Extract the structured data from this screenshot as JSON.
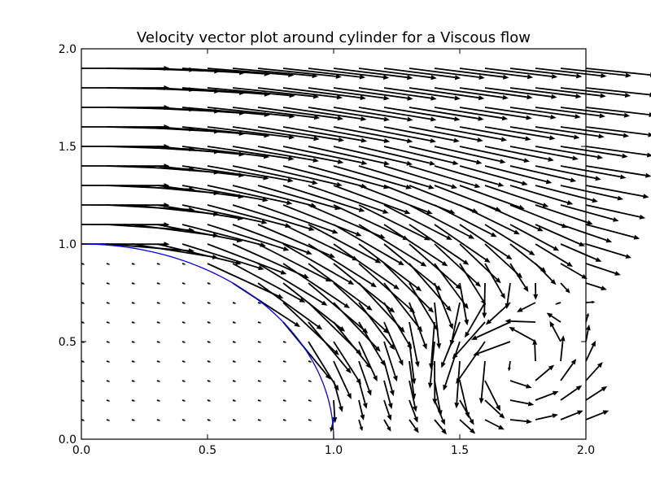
{
  "chart_data": {
    "type": "quiver",
    "title": "Velocity vector plot around cylinder for a Viscous flow",
    "xlabel": "",
    "ylabel": "",
    "xlim": [
      0.0,
      2.0
    ],
    "ylim": [
      0.0,
      2.0
    ],
    "x_ticks": [
      0.0,
      0.5,
      1.0,
      1.5,
      2.0
    ],
    "x_tick_labels": [
      "0.0",
      "0.5",
      "1.0",
      "1.5",
      "2.0"
    ],
    "y_ticks": [
      0.0,
      0.5,
      1.0,
      1.5,
      2.0
    ],
    "y_tick_labels": [
      "0.0",
      "0.5",
      "1.0",
      "1.5",
      "2.0"
    ],
    "grid": false,
    "legend": "none",
    "vector_grid": {
      "x_start": 0.0,
      "x_step": 0.1,
      "nx": 21,
      "y_start": 0.1,
      "y_step": 0.1,
      "ny": 19
    },
    "vector_field": "viscous flow around a cylinder of radius 1: uniform freestream above, weak velocity inside the cylinder region, recirculating vortex behind the cylinder near x 1.2-2.0, y 0.0-0.8",
    "cylinder_boundary": {
      "shape": "quarter-circle",
      "center": [
        0.0,
        0.0
      ],
      "radius": 1.0
    },
    "colors": {
      "arrows": "#000000",
      "cylinder": "#0000ff",
      "axes": "#000000"
    }
  }
}
